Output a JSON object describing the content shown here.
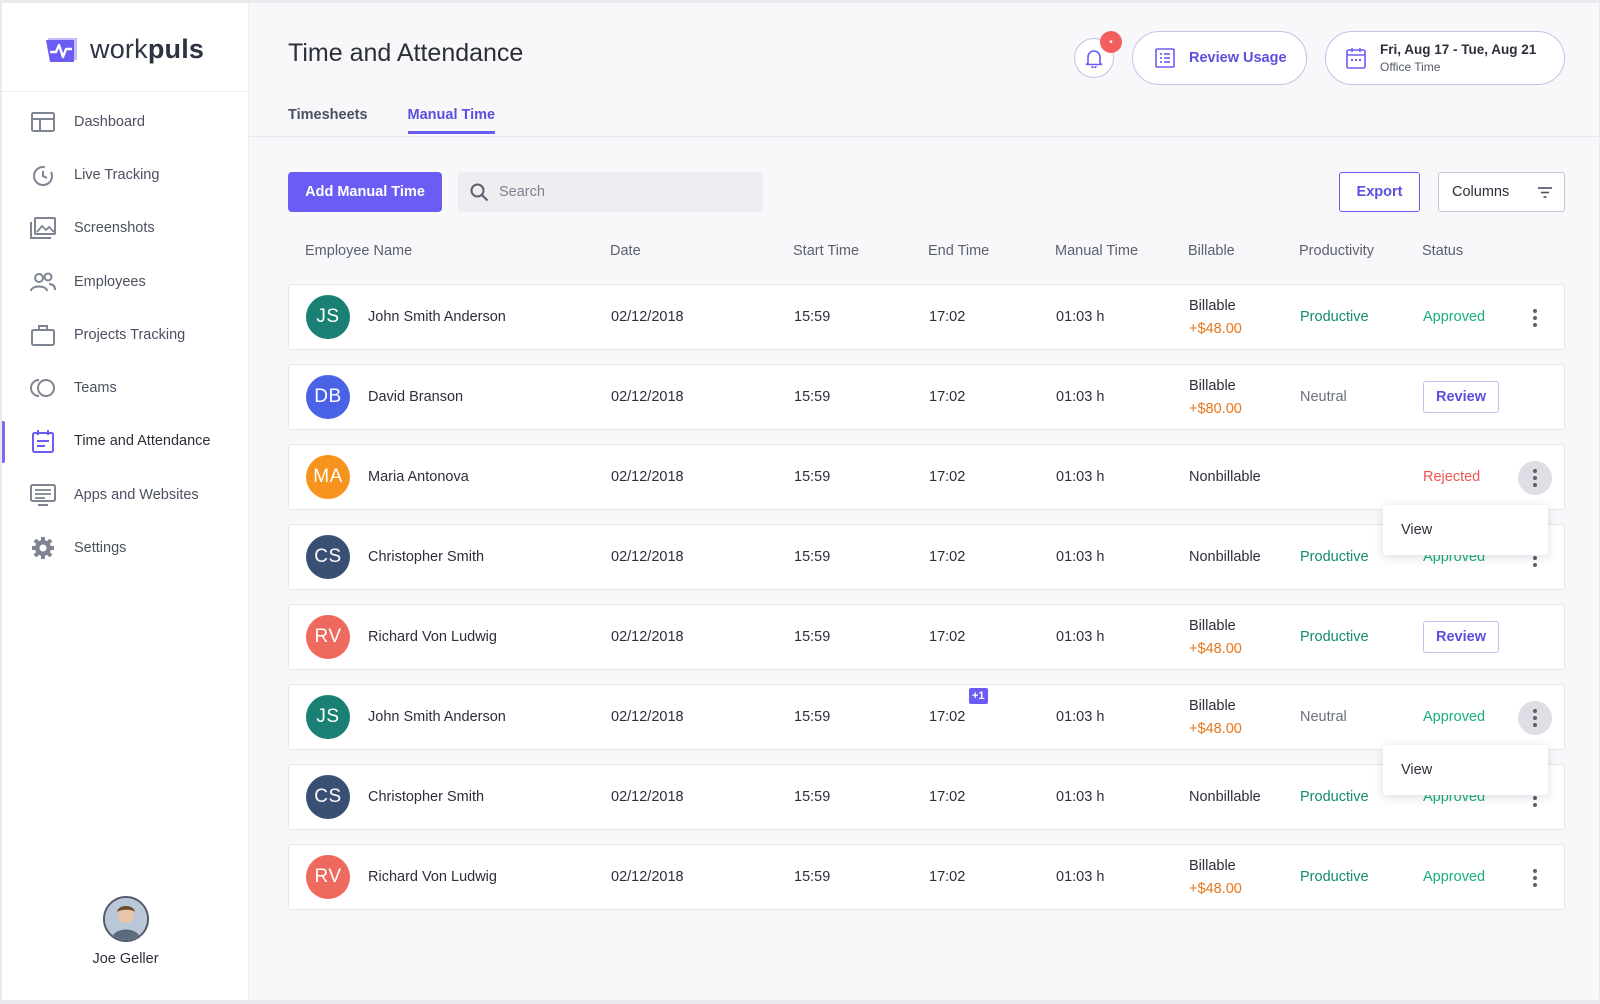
{
  "brand": {
    "light": "work",
    "bold": "puls"
  },
  "sidebar": {
    "items": [
      {
        "label": "Dashboard",
        "icon": "dashboard-icon"
      },
      {
        "label": "Live Tracking",
        "icon": "live-tracking-icon"
      },
      {
        "label": "Screenshots",
        "icon": "screenshots-icon"
      },
      {
        "label": "Employees",
        "icon": "employees-icon"
      },
      {
        "label": "Projects Tracking",
        "icon": "briefcase-icon"
      },
      {
        "label": "Teams",
        "icon": "teams-icon"
      },
      {
        "label": "Time and Attendance",
        "icon": "calendar-icon",
        "active": true
      },
      {
        "label": "Apps and Websites",
        "icon": "apps-websites-icon"
      },
      {
        "label": "Settings",
        "icon": "gear-icon"
      }
    ],
    "user": {
      "name": "Joe Geller"
    }
  },
  "header": {
    "title": "Time and Attendance",
    "notification_count": "•",
    "review_usage_label": "Review Usage",
    "date_range": "Fri, Aug 17 - Tue, Aug 21",
    "date_sub": "Office Time"
  },
  "tabs": [
    {
      "label": "Timesheets"
    },
    {
      "label": "Manual Time",
      "active": true
    }
  ],
  "toolbar": {
    "add_label": "Add Manual Time",
    "search_placeholder": "Search",
    "export_label": "Export",
    "columns_label": "Columns"
  },
  "table": {
    "headers": [
      "Employee Name",
      "Date",
      "Start Time",
      "End Time",
      "Manual Time",
      "Billable",
      "Productivity",
      "Status"
    ],
    "rows": [
      {
        "initials": "JS",
        "avatar_color": "#1b8074",
        "name": "John Smith Anderson",
        "date": "02/12/2018",
        "start": "15:59",
        "end": "17:02",
        "manual": "01:03 h",
        "billable": "Billable",
        "amount": "+$48.00",
        "productivity": "Productive",
        "status": "Approved"
      },
      {
        "initials": "DB",
        "avatar_color": "#4a63e6",
        "name": "David Branson",
        "date": "02/12/2018",
        "start": "15:59",
        "end": "17:02",
        "manual": "01:03 h",
        "billable": "Billable",
        "amount": "+$80.00",
        "productivity": "Neutral",
        "status": "Review"
      },
      {
        "initials": "MA",
        "avatar_color": "#f7941d",
        "name": "Maria Antonova",
        "date": "02/12/2018",
        "start": "15:59",
        "end": "17:02",
        "manual": "01:03 h",
        "billable": "Nonbillable",
        "amount": "",
        "productivity": "",
        "status": "Rejected",
        "menu_open": true
      },
      {
        "initials": "CS",
        "avatar_color": "#394f74",
        "name": "Christopher Smith",
        "date": "02/12/2018",
        "start": "15:59",
        "end": "17:02",
        "manual": "01:03 h",
        "billable": "Nonbillable",
        "amount": "",
        "productivity": "Productive",
        "status": "Approved"
      },
      {
        "initials": "RV",
        "avatar_color": "#ef6a5e",
        "name": "Richard Von Ludwig",
        "date": "02/12/2018",
        "start": "15:59",
        "end": "17:02",
        "manual": "01:03 h",
        "billable": "Billable",
        "amount": "+$48.00",
        "productivity": "Productive",
        "status": "Review"
      },
      {
        "initials": "JS",
        "avatar_color": "#1b8074",
        "name": "John Smith Anderson",
        "date": "02/12/2018",
        "start": "15:59",
        "end": "17:02",
        "end_badge": "+1",
        "manual": "01:03 h",
        "billable": "Billable",
        "amount": "+$48.00",
        "productivity": "Neutral",
        "status": "Approved",
        "menu_open": true
      },
      {
        "initials": "CS",
        "avatar_color": "#394f74",
        "name": "Christopher Smith",
        "date": "02/12/2018",
        "start": "15:59",
        "end": "17:02",
        "manual": "01:03 h",
        "billable": "Nonbillable",
        "amount": "",
        "productivity": "Productive",
        "status": "Approved"
      },
      {
        "initials": "RV",
        "avatar_color": "#ef6a5e",
        "name": "Richard Von Ludwig",
        "date": "02/12/2018",
        "start": "15:59",
        "end": "17:02",
        "manual": "01:03 h",
        "billable": "Billable",
        "amount": "+$48.00",
        "productivity": "Productive",
        "status": "Approved"
      }
    ],
    "row_menu": {
      "view_label": "View"
    }
  },
  "colors": {
    "accent": "#6b5cf4",
    "productive": "#128a6c",
    "approved": "#18b07f",
    "rejected": "#ef5454",
    "amount": "#e8751a"
  }
}
